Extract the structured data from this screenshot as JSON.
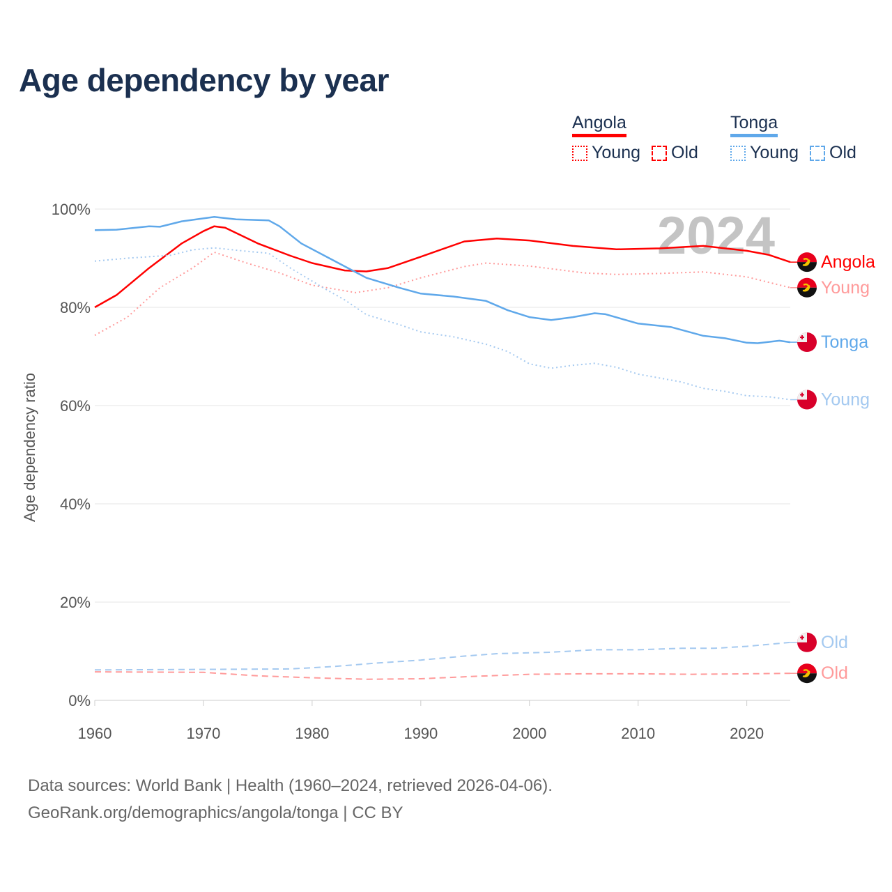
{
  "title": "Age dependency by year",
  "legend": {
    "groups": [
      {
        "name": "Angola",
        "color": "#ff0000",
        "items": [
          "Young",
          "Old"
        ]
      },
      {
        "name": "Tonga",
        "color": "#5fa8ea",
        "items": [
          "Young",
          "Old"
        ]
      }
    ]
  },
  "year_watermark": "2024",
  "source": {
    "line1": "Data sources: World Bank | Health (1960–2024, retrieved 2026-04-06).",
    "line2": "GeoRank.org/demographics/angola/tonga | CC BY"
  },
  "chart_data": {
    "type": "line",
    "title": "Age dependency by year",
    "xlabel": "",
    "ylabel": "Age dependency ratio",
    "xlim": [
      1960,
      2024
    ],
    "ylim": [
      0,
      100
    ],
    "x_ticks": [
      "1960",
      "1970",
      "1980",
      "1990",
      "2000",
      "2010",
      "2020"
    ],
    "y_ticks": [
      "0%",
      "20%",
      "40%",
      "60%",
      "80%",
      "100%"
    ],
    "grid": true,
    "series": [
      {
        "name": "Angola",
        "end_label": "Angola",
        "flag": "angola",
        "color": "#ff0000",
        "style": "solid",
        "points": [
          [
            1960,
            80
          ],
          [
            1962,
            82.5
          ],
          [
            1965,
            88
          ],
          [
            1968,
            93
          ],
          [
            1970,
            95.5
          ],
          [
            1971,
            96.5
          ],
          [
            1972,
            96.2
          ],
          [
            1975,
            93
          ],
          [
            1978,
            90.5
          ],
          [
            1980,
            89
          ],
          [
            1983,
            87.5
          ],
          [
            1985,
            87.3
          ],
          [
            1987,
            88
          ],
          [
            1990,
            90.3
          ],
          [
            1994,
            93.4
          ],
          [
            1997,
            94
          ],
          [
            2000,
            93.6
          ],
          [
            2004,
            92.5
          ],
          [
            2008,
            91.8
          ],
          [
            2012,
            92
          ],
          [
            2016,
            92.5
          ],
          [
            2020,
            91.5
          ],
          [
            2022,
            90.7
          ],
          [
            2024,
            89.2
          ]
        ]
      },
      {
        "name": "Angola Young",
        "end_label": "Young",
        "flag": "angola",
        "color": "#ff9a9a",
        "style": "dotted",
        "points": [
          [
            1960,
            74.3
          ],
          [
            1963,
            78
          ],
          [
            1966,
            84
          ],
          [
            1969,
            88
          ],
          [
            1971,
            91.2
          ],
          [
            1974,
            89
          ],
          [
            1977,
            87
          ],
          [
            1980,
            84.5
          ],
          [
            1984,
            83
          ],
          [
            1987,
            84
          ],
          [
            1990,
            86
          ],
          [
            1994,
            88.3
          ],
          [
            1996,
            89
          ],
          [
            2000,
            88.4
          ],
          [
            2005,
            87
          ],
          [
            2008,
            86.7
          ],
          [
            2012,
            86.9
          ],
          [
            2016,
            87.2
          ],
          [
            2020,
            86.2
          ],
          [
            2024,
            84
          ]
        ]
      },
      {
        "name": "Tonga",
        "end_label": "Tonga",
        "flag": "tonga",
        "color": "#5fa8ea",
        "style": "solid",
        "points": [
          [
            1960,
            95.7
          ],
          [
            1962,
            95.8
          ],
          [
            1965,
            96.5
          ],
          [
            1966,
            96.4
          ],
          [
            1968,
            97.5
          ],
          [
            1971,
            98.4
          ],
          [
            1973,
            97.9
          ],
          [
            1976,
            97.7
          ],
          [
            1977,
            96.5
          ],
          [
            1979,
            93
          ],
          [
            1982,
            89.5
          ],
          [
            1985,
            86
          ],
          [
            1988,
            84
          ],
          [
            1990,
            82.8
          ],
          [
            1993,
            82.2
          ],
          [
            1996,
            81.3
          ],
          [
            1998,
            79.4
          ],
          [
            2000,
            78
          ],
          [
            2002,
            77.4
          ],
          [
            2004,
            78
          ],
          [
            2006,
            78.8
          ],
          [
            2007,
            78.6
          ],
          [
            2010,
            76.7
          ],
          [
            2013,
            76
          ],
          [
            2016,
            74.2
          ],
          [
            2018,
            73.7
          ],
          [
            2020,
            72.8
          ],
          [
            2021,
            72.7
          ],
          [
            2023,
            73.2
          ],
          [
            2024,
            72.9
          ]
        ]
      },
      {
        "name": "Tonga Young",
        "end_label": "Young",
        "flag": "tonga",
        "color": "#a4c9f0",
        "style": "dotted",
        "points": [
          [
            1960,
            89.4
          ],
          [
            1963,
            90
          ],
          [
            1965,
            90.3
          ],
          [
            1967,
            90.6
          ],
          [
            1969,
            91.7
          ],
          [
            1971,
            92.1
          ],
          [
            1974,
            91.4
          ],
          [
            1976,
            91
          ],
          [
            1978,
            88
          ],
          [
            1981,
            84
          ],
          [
            1983,
            81.5
          ],
          [
            1985,
            78.5
          ],
          [
            1988,
            76.5
          ],
          [
            1990,
            75
          ],
          [
            1993,
            74
          ],
          [
            1996,
            72.5
          ],
          [
            1998,
            71
          ],
          [
            2000,
            68.5
          ],
          [
            2002,
            67.6
          ],
          [
            2004,
            68.2
          ],
          [
            2006,
            68.6
          ],
          [
            2008,
            67.8
          ],
          [
            2010,
            66.4
          ],
          [
            2012,
            65.6
          ],
          [
            2014,
            64.8
          ],
          [
            2016,
            63.5
          ],
          [
            2018,
            62.9
          ],
          [
            2020,
            62
          ],
          [
            2022,
            61.8
          ],
          [
            2024,
            61.2
          ]
        ]
      },
      {
        "name": "Tonga Old",
        "end_label": "Old",
        "flag": "tonga",
        "color": "#a4c9f0",
        "style": "dashed",
        "points": [
          [
            1960,
            6.2
          ],
          [
            1970,
            6.3
          ],
          [
            1978,
            6.4
          ],
          [
            1982,
            6.9
          ],
          [
            1986,
            7.6
          ],
          [
            1990,
            8.2
          ],
          [
            1994,
            9
          ],
          [
            1997,
            9.5
          ],
          [
            2002,
            9.8
          ],
          [
            2006,
            10.3
          ],
          [
            2010,
            10.3
          ],
          [
            2014,
            10.6
          ],
          [
            2017,
            10.6
          ],
          [
            2020,
            11
          ],
          [
            2024,
            11.8
          ]
        ]
      },
      {
        "name": "Angola Old",
        "end_label": "Old",
        "flag": "angola",
        "color": "#ff9a9a",
        "style": "dashed",
        "points": [
          [
            1960,
            5.8
          ],
          [
            1970,
            5.7
          ],
          [
            1975,
            5
          ],
          [
            1980,
            4.6
          ],
          [
            1985,
            4.3
          ],
          [
            1990,
            4.4
          ],
          [
            1995,
            4.9
          ],
          [
            2000,
            5.3
          ],
          [
            2005,
            5.4
          ],
          [
            2010,
            5.4
          ],
          [
            2015,
            5.3
          ],
          [
            2020,
            5.4
          ],
          [
            2024,
            5.5
          ]
        ]
      }
    ]
  }
}
